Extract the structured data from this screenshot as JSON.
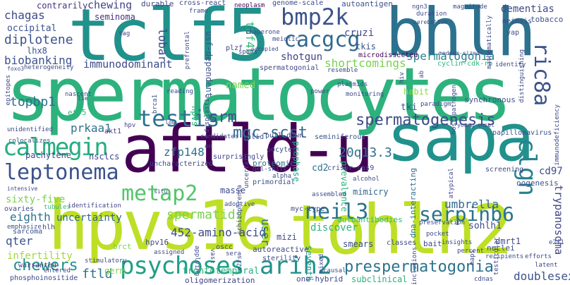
{
  "words": [
    {
      "text": "spermatocytes",
      "color": "#2db27d"
    },
    {
      "text": "hpvs16",
      "color": "#bddf26"
    },
    {
      "text": "tohlh2",
      "color": "#bddf26"
    },
    {
      "text": "tclf5",
      "color": "#21918c"
    },
    {
      "text": "bhlh",
      "color": "#2c728e"
    },
    {
      "text": "aftld-u",
      "color": "#440154"
    },
    {
      "text": "sapa",
      "color": "#21918c"
    },
    {
      "text": "leptonema",
      "color": "#3b528b"
    },
    {
      "text": "calmegin",
      "color": "#28ae80"
    },
    {
      "text": "metap2",
      "color": "#52c569"
    },
    {
      "text": "psychoses",
      "color": "#1f9e89"
    },
    {
      "text": "arih2",
      "color": "#21918c"
    },
    {
      "text": "prespermatogonia",
      "color": "#2c728e"
    },
    {
      "text": "neil3",
      "color": "#2c728e"
    },
    {
      "text": "serpinb6",
      "color": "#2c728e"
    },
    {
      "text": "testis",
      "color": "#2c728e"
    },
    {
      "text": "bmp2k",
      "color": "#3b528b"
    },
    {
      "text": "cacgcg",
      "color": "#31688e"
    },
    {
      "text": "clgn",
      "color": "#26828e"
    },
    {
      "text": "ric8a",
      "color": "#3b528b"
    },
    {
      "text": "spermatogenesis",
      "color": "#3e4a89"
    },
    {
      "text": "mgc-scst",
      "color": "#31688e"
    },
    {
      "text": "srm",
      "color": "#3b528b"
    },
    {
      "text": "spermatids",
      "color": "#7ad151"
    },
    {
      "text": "chewers",
      "color": "#21918c"
    },
    {
      "text": "ftld",
      "color": "#2c728e"
    },
    {
      "text": "frontotemporal",
      "color": "#2db27d"
    },
    {
      "text": "452-amino-acid",
      "color": "#3e4a89"
    },
    {
      "text": "umbrella",
      "color": "#31688e"
    },
    {
      "text": "zfp148",
      "color": "#2c728e"
    },
    {
      "text": "20q13.3",
      "color": "#2c728e"
    },
    {
      "text": "topbp1",
      "color": "#2c728e"
    },
    {
      "text": "prkaa1",
      "color": "#2c728e"
    },
    {
      "text": "shortcomings",
      "color": "#7ad151"
    },
    {
      "text": "spermatogonia",
      "color": "#26828e"
    },
    {
      "text": "diplotene",
      "color": "#3b528b"
    },
    {
      "text": "biobanking",
      "color": "#3b528b"
    },
    {
      "text": "immunodominant",
      "color": "#3e4a89"
    },
    {
      "text": "chagas",
      "color": "#3e4a89"
    },
    {
      "text": "occipital",
      "color": "#3b528b"
    },
    {
      "text": "lhx8",
      "color": "#3b528b"
    },
    {
      "text": "chewing",
      "color": "#414487"
    },
    {
      "text": "seminoma",
      "color": "#46327e"
    },
    {
      "text": "lobar",
      "color": "#3e4a89"
    },
    {
      "text": "taf4b",
      "color": "#35b779"
    },
    {
      "text": "cruzi",
      "color": "#3e4a89"
    },
    {
      "text": "tkis",
      "color": "#3b528b"
    },
    {
      "text": "shotgun",
      "color": "#414487"
    },
    {
      "text": "named",
      "color": "#7ad151"
    },
    {
      "text": "usf-dependent",
      "color": "#3b528b"
    },
    {
      "text": "dementias",
      "color": "#3e4a89"
    },
    {
      "text": "tobacco",
      "color": "#3b528b"
    },
    {
      "text": "contrarily",
      "color": "#46327e"
    },
    {
      "text": "sixty-five",
      "color": "#7ad151"
    },
    {
      "text": "eighth",
      "color": "#2c728e"
    },
    {
      "text": "qter",
      "color": "#3b528b"
    },
    {
      "text": "infertility",
      "color": "#a0da39"
    },
    {
      "text": "uncertainty",
      "color": "#31688e"
    },
    {
      "text": "hpvs",
      "color": "#2db27d"
    },
    {
      "text": "user",
      "color": "#2c728e"
    },
    {
      "text": "trypanosoma",
      "color": "#414487"
    },
    {
      "text": "sohlh1",
      "color": "#3e4a89"
    },
    {
      "text": "cd97",
      "color": "#3e4a89"
    },
    {
      "text": "dmrt1",
      "color": "#3e4a89"
    },
    {
      "text": "doublesex",
      "color": "#3b528b"
    },
    {
      "text": "seventh",
      "color": "#21918c"
    },
    {
      "text": "subclinical",
      "color": "#2db27d"
    },
    {
      "text": "discover",
      "color": "#2db27d"
    },
    {
      "text": "smears",
      "color": "#3e4a89"
    },
    {
      "text": "cd2",
      "color": "#2c728e"
    },
    {
      "text": "mimicry",
      "color": "#31688e"
    },
    {
      "text": "tki",
      "color": "#3b528b"
    },
    {
      "text": "habit",
      "color": "#8fd744"
    },
    {
      "text": "brct",
      "color": "#7ad151"
    },
    {
      "text": "hpv16",
      "color": "#3e4a89"
    },
    {
      "text": "mizi",
      "color": "#3e4a89"
    },
    {
      "text": "nsclcs",
      "color": "#414487"
    },
    {
      "text": "pachytene",
      "color": "#3e4a89"
    },
    {
      "text": "etv5",
      "color": "#35b779"
    },
    {
      "text": "akt1",
      "color": "#414487"
    },
    {
      "text": "masse",
      "color": "#3e4a89"
    },
    {
      "text": "prophase",
      "color": "#22a884"
    },
    {
      "text": "prevalence",
      "color": "#2db27d"
    },
    {
      "text": "oogenesis",
      "color": "#3b528b"
    },
    {
      "text": "screening",
      "color": "#3e4a89"
    },
    {
      "text": "autoantibodies",
      "color": "#35b779"
    },
    {
      "text": "dna-interacting",
      "color": "#2c728e"
    },
    {
      "text": "synchronous",
      "color": "#3b528b"
    },
    {
      "text": "papillomavirus",
      "color": "#3b528b"
    },
    {
      "text": "cyclin-cdk-rb",
      "color": "#2db27d"
    },
    {
      "text": "microdissected",
      "color": "#440154"
    },
    {
      "text": "autoantigen",
      "color": "#3b528b"
    },
    {
      "text": "genome-scale",
      "color": "#3e4a89"
    },
    {
      "text": "cross-react",
      "color": "#3e4a89"
    },
    {
      "text": "durable",
      "color": "#414487"
    },
    {
      "text": "plzf",
      "color": "#414487"
    },
    {
      "text": "spermatogonial",
      "color": "#414487"
    },
    {
      "text": "autoreactive",
      "color": "#3e4a89"
    },
    {
      "text": "sterility",
      "color": "#3e4a89"
    },
    {
      "text": "one-hybrid",
      "color": "#3e4a89"
    },
    {
      "text": "oligomerization",
      "color": "#414487"
    },
    {
      "text": "bait",
      "color": "#3e4a89"
    },
    {
      "text": "nuclei",
      "color": "#3b528b"
    },
    {
      "text": "germ",
      "color": "#7ad151"
    },
    {
      "text": "warranted",
      "color": "#414487"
    },
    {
      "text": "phosphoinositide",
      "color": "#3e4a89"
    },
    {
      "text": "sarcoma",
      "color": "#3b528b"
    },
    {
      "text": "ovaries",
      "color": "#3e4a89"
    },
    {
      "text": "emphasize",
      "color": "#3b528b"
    },
    {
      "text": "hlh",
      "color": "#414487"
    },
    {
      "text": "tubules",
      "color": "#35b779"
    },
    {
      "text": "identification",
      "color": "#414487"
    },
    {
      "text": "colocalizes",
      "color": "#3b528b"
    },
    {
      "text": "unidentified",
      "color": "#3e4a89"
    },
    {
      "text": "hpv",
      "color": "#414487"
    },
    {
      "text": "uncharacterized",
      "color": "#3e4a89"
    },
    {
      "text": "surprisingly",
      "color": "#414487"
    },
    {
      "text": "candidates",
      "color": "#3e4a89"
    },
    {
      "text": "valid",
      "color": "#3b528b"
    },
    {
      "text": "pull-down",
      "color": "#3e4a89"
    },
    {
      "text": "seminiferous",
      "color": "#3b528b"
    },
    {
      "text": "oocytes",
      "color": "#3e4a89"
    },
    {
      "text": "proteomic",
      "color": "#2c728e"
    },
    {
      "text": "crispr-cas9",
      "color": "#3e4a89"
    },
    {
      "text": "alcohol",
      "color": "#3e4a89"
    },
    {
      "text": "primordial",
      "color": "#3b528b"
    },
    {
      "text": "myc-type",
      "color": "#3e4a89"
    },
    {
      "text": "adoptive",
      "color": "#3b528b"
    },
    {
      "text": "assembled",
      "color": "#3e4a89"
    },
    {
      "text": "stimulatory",
      "color": "#3e4a89"
    },
    {
      "text": "assigned",
      "color": "#3e4a89"
    },
    {
      "text": "entered",
      "color": "#3e4a89"
    },
    {
      "text": "oscc",
      "color": "#3e4a89"
    },
    {
      "text": "classes",
      "color": "#3e4a89"
    },
    {
      "text": "preservation",
      "color": "#3e4a89"
    },
    {
      "text": "pocket",
      "color": "#3e4a89"
    },
    {
      "text": "insights",
      "color": "#3e4a89"
    },
    {
      "text": "percent",
      "color": "#3e4a89"
    },
    {
      "text": "recipients",
      "color": "#3e4a89"
    },
    {
      "text": "efforts",
      "color": "#3e4a89"
    },
    {
      "text": "causal",
      "color": "#3e4a89"
    },
    {
      "text": "cdnas",
      "color": "#3e4a89"
    },
    {
      "text": "latent",
      "color": "#3e4a89"
    },
    {
      "text": "sera",
      "color": "#3e4a89"
    },
    {
      "text": "neoplasm",
      "color": "#440154"
    },
    {
      "text": "ngn3",
      "color": "#3e4a89"
    },
    {
      "text": "duration",
      "color": "#3e4a89"
    },
    {
      "text": "magnitude",
      "color": "#3e4a89"
    },
    {
      "text": "frame",
      "color": "#3e4a89"
    },
    {
      "text": "chaperone",
      "color": "#3e4a89"
    },
    {
      "text": "meiotic",
      "color": "#3e4a89"
    },
    {
      "text": "meiosis",
      "color": "#3e4a89"
    },
    {
      "text": "yap",
      "color": "#3e4a89"
    },
    {
      "text": "tag",
      "color": "#3e4a89"
    },
    {
      "text": "spans",
      "color": "#3e4a89"
    },
    {
      "text": "occupied",
      "color": "#3e4a89"
    },
    {
      "text": "resemble",
      "color": "#3e4a89"
    },
    {
      "text": "identity",
      "color": "#3e4a89"
    },
    {
      "text": "heterogeneity",
      "color": "#3e4a89"
    },
    {
      "text": "foxo3",
      "color": "#3e4a89"
    },
    {
      "text": "nascent",
      "color": "#3e4a89"
    },
    {
      "text": "reading",
      "color": "#3e4a89"
    },
    {
      "text": "power",
      "color": "#3e4a89"
    },
    {
      "text": "plasmids",
      "color": "#3e4a89"
    },
    {
      "text": "monitoring",
      "color": "#3e4a89"
    },
    {
      "text": "paradigm",
      "color": "#3e4a89"
    },
    {
      "text": "young-onset",
      "color": "#3e4a89"
    },
    {
      "text": "gel-shift",
      "color": "#3e4a89"
    },
    {
      "text": "applying",
      "color": "#3e4a89"
    },
    {
      "text": "vast",
      "color": "#3e4a89"
    },
    {
      "text": "prefrontal",
      "color": "#3e4a89"
    },
    {
      "text": "epitopes",
      "color": "#3e4a89"
    },
    {
      "text": "dysplastic",
      "color": "#3e4a89"
    },
    {
      "text": "schizophrenia",
      "color": "#3e4a89"
    },
    {
      "text": "uncertain",
      "color": "#3e4a89"
    },
    {
      "text": "inclusions",
      "color": "#3e4a89"
    },
    {
      "text": "brca1",
      "color": "#3e4a89"
    },
    {
      "text": "intensive",
      "color": "#3e4a89"
    },
    {
      "text": "e2fs",
      "color": "#3e4a89"
    },
    {
      "text": "mixed",
      "color": "#3e4a89"
    },
    {
      "text": "cerebellum",
      "color": "#3e4a89"
    },
    {
      "text": "medium-sized",
      "color": "#3e4a89"
    },
    {
      "text": "mathematically",
      "color": "#3e4a89"
    },
    {
      "text": "distinguishing",
      "color": "#3e4a89"
    },
    {
      "text": "immunodeficiency",
      "color": "#3e4a89"
    },
    {
      "text": "host-pathogen",
      "color": "#3e4a89"
    },
    {
      "text": "atypical",
      "color": "#3e4a89"
    },
    {
      "text": "testicular",
      "color": "#3e4a89"
    },
    {
      "text": "maps",
      "color": "#3e4a89"
    },
    {
      "text": "e2f1",
      "color": "#3e4a89"
    },
    {
      "text": "alpha",
      "color": "#3e4a89"
    },
    {
      "text": "ab",
      "color": "#3e4a89"
    },
    {
      "text": "hiv",
      "color": "#3e4a89"
    },
    {
      "text": "low",
      "color": "#3e4a89"
    },
    {
      "text": "situ",
      "color": "#3e4a89"
    },
    {
      "text": "en",
      "color": "#3e4a89"
    },
    {
      "text": "lie",
      "color": "#3e4a89"
    }
  ]
}
